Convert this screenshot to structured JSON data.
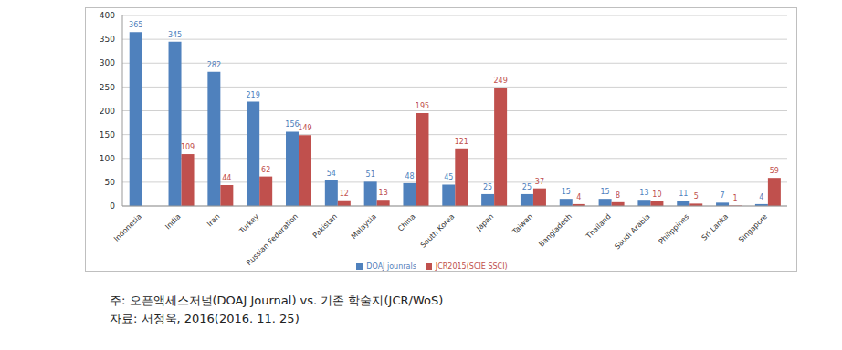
{
  "chart_data": {
    "type": "bar",
    "categories": [
      "Indonesia",
      "India",
      "Iran",
      "Turkey",
      "Russian Federation",
      "Pakistan",
      "Malaysia",
      "China",
      "South Korea",
      "Japan",
      "Taiwan",
      "Bangladesh",
      "Thailand",
      "Saudi Arabia",
      "Philippines",
      "Sri Lanka",
      "Singapore"
    ],
    "series": [
      {
        "name": "DOAJ jounrals",
        "color": "#4f81bd",
        "values": [
          365,
          345,
          282,
          219,
          156,
          54,
          51,
          48,
          45,
          25,
          25,
          15,
          15,
          13,
          11,
          7,
          4
        ]
      },
      {
        "name": "JCR2015(SCIE SSCI)",
        "color": "#c0504d",
        "values": [
          null,
          109,
          44,
          62,
          149,
          12,
          13,
          195,
          121,
          249,
          37,
          4,
          8,
          10,
          5,
          1,
          59
        ]
      }
    ],
    "ylim": [
      0,
      400
    ],
    "yticks": [
      0,
      50,
      100,
      150,
      200,
      250,
      300,
      350,
      400
    ],
    "grid": true,
    "legend": "bottom",
    "data_labels": true,
    "annotations": [
      "주: 오픈액세스저널(DOAJ Journal) vs. 기존 학술지(JCR/WoS)",
      "자료: 서정욱, 2016(2016. 11. 25)"
    ]
  }
}
